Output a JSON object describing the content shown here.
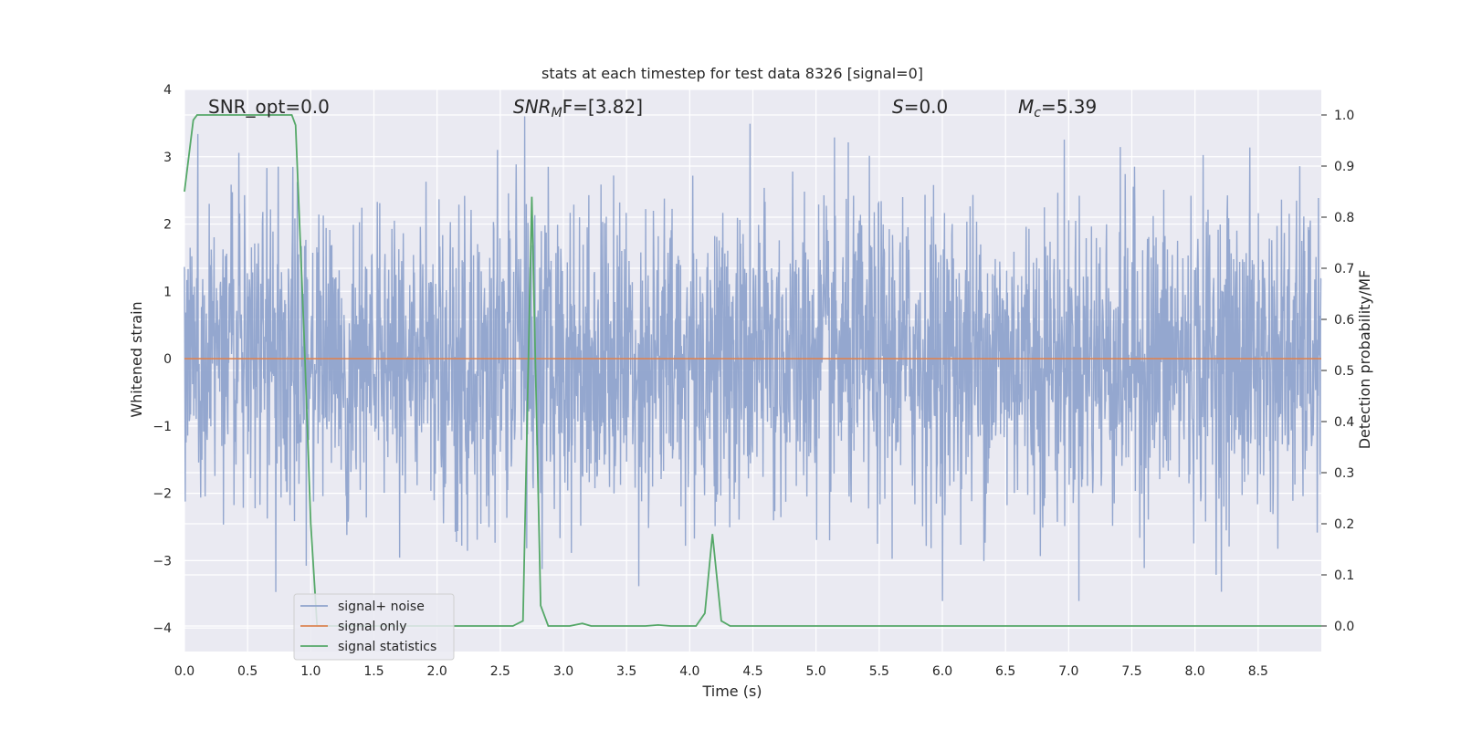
{
  "chart_data": {
    "type": "line",
    "title": "stats at each timestep for test data 8326 [signal=0]",
    "xlabel": "Time (s)",
    "ylabel": "Whitened strain",
    "ylabel_right": "Detection probability/MF",
    "xlim": [
      0,
      9.0
    ],
    "ylim": [
      -4.35,
      4.0
    ],
    "ylim_right": [
      -0.05,
      1.05
    ],
    "xticks": [
      0.0,
      0.5,
      1.0,
      1.5,
      2.0,
      2.5,
      3.0,
      3.5,
      4.0,
      4.5,
      5.0,
      5.5,
      6.0,
      6.5,
      7.0,
      7.5,
      8.0,
      8.5
    ],
    "xtick_labels": [
      "0.0",
      "0.5",
      "1.0",
      "1.5",
      "2.0",
      "2.5",
      "3.0",
      "3.5",
      "4.0",
      "4.5",
      "5.0",
      "5.5",
      "6.0",
      "6.5",
      "7.0",
      "7.5",
      "8.0",
      "8.5"
    ],
    "yticks": [
      4,
      3,
      2,
      1,
      0,
      -1,
      -2,
      -3,
      -4
    ],
    "ytick_labels": [
      "4",
      "3",
      "2",
      "1",
      "0",
      "−1",
      "−2",
      "−3",
      "−4"
    ],
    "yticks_right": [
      1.0,
      0.9,
      0.8,
      0.7,
      0.6,
      0.5,
      0.4,
      0.3,
      0.2,
      0.1,
      0.0
    ],
    "ytick_labels_right": [
      "1.0",
      "0.9",
      "0.8",
      "0.7",
      "0.6",
      "0.5",
      "0.4",
      "0.3",
      "0.2",
      "0.1",
      "0.0"
    ],
    "grid": true,
    "legend_placement": "lower-left",
    "annotations": {
      "snr_opt": "SNR_opt=0.0",
      "snr_mf_base": "SNR",
      "snr_mf_sub": "M",
      "snr_mf_rest": "F=[3.82]",
      "s_base": "S",
      "s_rest": "=0.0",
      "mc_base": "M",
      "mc_sub": "c",
      "mc_rest": "=5.39"
    },
    "series": [
      {
        "name": "signal+ noise",
        "color": "#8fa3cc",
        "axis": "left",
        "description_values": "whitened noise, approx. Gaussian, range about [-3.6, 3.6]",
        "range": [
          -3.6,
          3.6
        ]
      },
      {
        "name": "signal only",
        "color": "#dd8452",
        "axis": "left",
        "x": [
          0,
          9.0
        ],
        "y": [
          0,
          0
        ]
      },
      {
        "name": "signal statistics",
        "color": "#55a868",
        "axis": "right",
        "x": [
          0.0,
          0.07,
          0.1,
          0.2,
          0.5,
          0.85,
          0.88,
          0.95,
          1.0,
          1.05,
          2.6,
          2.68,
          2.75,
          2.82,
          2.88,
          3.05,
          3.15,
          3.22,
          3.65,
          3.75,
          3.85,
          4.05,
          4.12,
          4.18,
          4.25,
          4.32,
          9.0
        ],
        "y": [
          0.85,
          0.99,
          1.0,
          1.0,
          1.0,
          1.0,
          0.98,
          0.55,
          0.2,
          0.0,
          0.0,
          0.01,
          0.84,
          0.04,
          0.0,
          0.0,
          0.005,
          0.0,
          0.0,
          0.002,
          0.0,
          0.0,
          0.025,
          0.18,
          0.01,
          0.0,
          0.0
        ]
      }
    ]
  }
}
